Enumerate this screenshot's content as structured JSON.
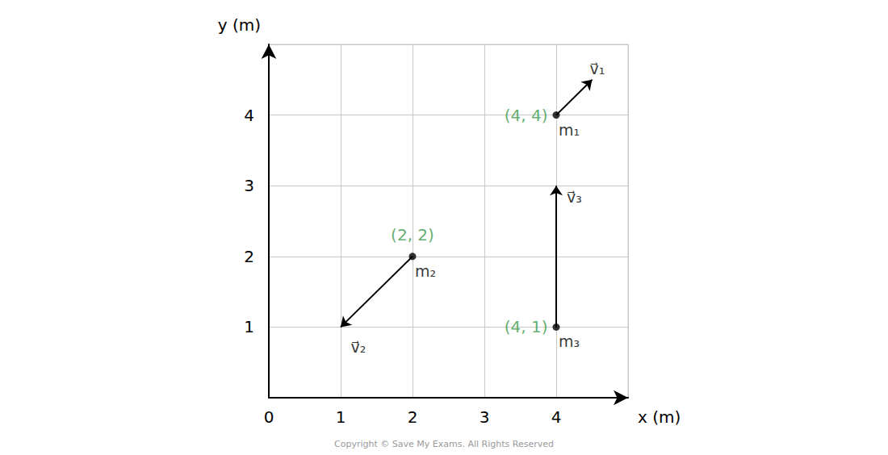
{
  "chart_data": {
    "type": "scatter",
    "xlabel": "x (m)",
    "ylabel": "y (m)",
    "xlim": [
      0,
      5
    ],
    "ylim": [
      0,
      5
    ],
    "xticks": [
      0,
      1,
      2,
      3,
      4
    ],
    "yticks": [
      1,
      2,
      3,
      4
    ],
    "grid": true,
    "color": "#000000",
    "points": [
      {
        "name": "m₁",
        "x": 4,
        "y": 4,
        "label": "(4, 4)",
        "vector": {
          "name": "v⃗₁",
          "dx": 0.5,
          "dy": 0.5
        }
      },
      {
        "name": "m₂",
        "x": 2,
        "y": 2,
        "label": "(2, 2)",
        "vector": {
          "name": "v⃗₂",
          "dx": -1,
          "dy": -1
        }
      },
      {
        "name": "m₃",
        "x": 4,
        "y": 1,
        "label": "(4, 1)",
        "vector": {
          "name": "v⃗₃",
          "dx": 0,
          "dy": 2
        }
      }
    ]
  },
  "footer": "Copyright © Save My Exams. All Rights Reserved"
}
